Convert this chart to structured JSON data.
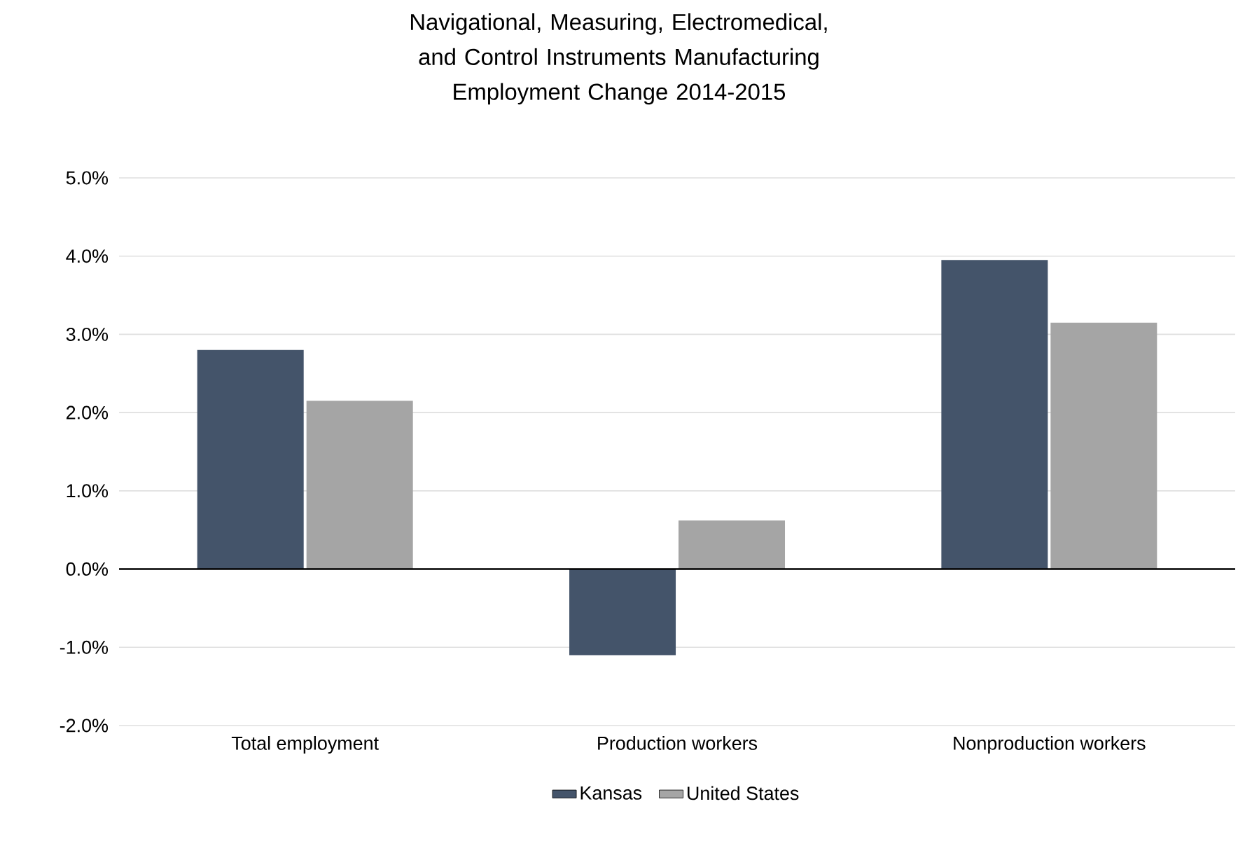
{
  "chart_data": {
    "type": "bar",
    "title": "Navigational, Measuring, Electromedical, and Control Instruments Manufacturing",
    "subtitle": "Employment Change 2014-2015",
    "categories": [
      "Total employment",
      "Production workers",
      "Nonproduction workers"
    ],
    "series": [
      {
        "name": "Kansas",
        "color": "#44546a",
        "values": [
          2.8,
          -1.1,
          3.95
        ]
      },
      {
        "name": "United States",
        "color": "#a5a5a5",
        "values": [
          2.15,
          0.62,
          3.15
        ]
      }
    ],
    "ylim": [
      -2,
      5
    ],
    "yticks": [
      {
        "value": -2,
        "label": "-2.0%"
      },
      {
        "value": -1,
        "label": "-1.0%"
      },
      {
        "value": 0,
        "label": "0.0%"
      },
      {
        "value": 1,
        "label": "1.0%"
      },
      {
        "value": 2,
        "label": "2.0%"
      },
      {
        "value": 3,
        "label": "3.0%"
      },
      {
        "value": 4,
        "label": "4.0%"
      },
      {
        "value": 5,
        "label": "5.0%"
      }
    ],
    "grid": "y",
    "legend": "bottom"
  }
}
